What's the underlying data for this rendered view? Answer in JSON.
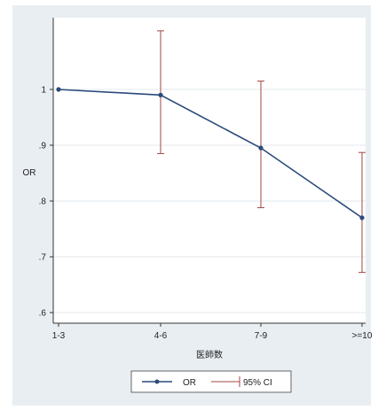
{
  "chart_data": {
    "type": "line",
    "title": "",
    "xlabel": "医師数",
    "ylabel": "OR",
    "categories": [
      "1-3",
      "4-6",
      "7-9",
      ">=10"
    ],
    "ylim": [
      0.6,
      1.1
    ],
    "yticks": [
      ".6",
      ".7",
      ".8",
      ".9",
      "1"
    ],
    "ytick_values": [
      0.6,
      0.7,
      0.8,
      0.9,
      1.0
    ],
    "grid": true,
    "legend": "bottom",
    "series": [
      {
        "name": "OR",
        "values": [
          1.0,
          0.99,
          0.895,
          0.77
        ]
      },
      {
        "name": "95% CI",
        "lower": [
          1.0,
          0.885,
          0.788,
          0.672
        ],
        "upper": [
          1.0,
          1.105,
          1.015,
          0.887
        ]
      }
    ]
  },
  "colors": {
    "or_line": "#2b4a7a",
    "ci_bars": "#a64545",
    "panel_bg": "#e9eef2",
    "plot_bg": "#ffffff",
    "grid": "#e3e8ec"
  }
}
